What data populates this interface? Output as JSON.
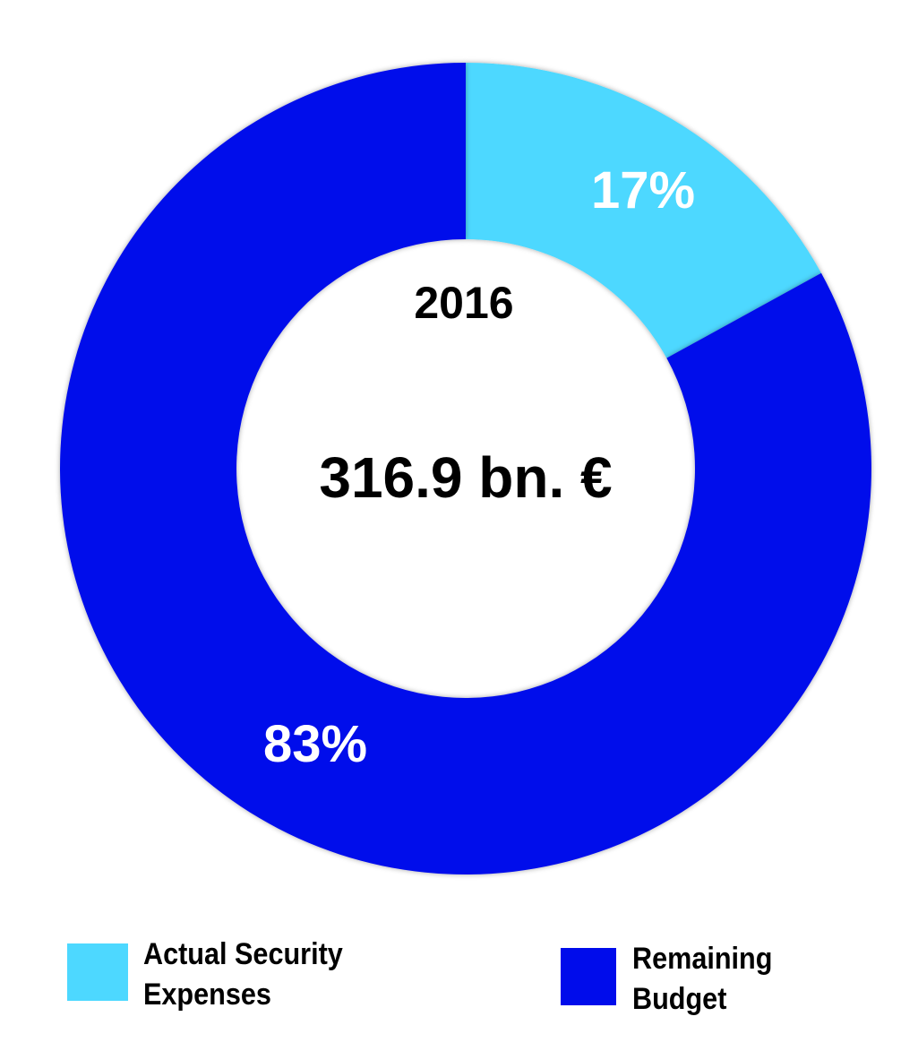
{
  "chart_data": {
    "type": "pie",
    "donut": true,
    "title": "2016",
    "center_label": "316.9 bn. €",
    "slices": [
      {
        "name": "Actual Security Expenses",
        "value": 17,
        "label": "17%",
        "color": "#4DD8FF"
      },
      {
        "name": "Remaining Budget",
        "value": 83,
        "label": "83%",
        "color": "#000CEB"
      }
    ],
    "legend": {
      "placement": "bottom",
      "entries": [
        {
          "line1": "Actual Security",
          "line2": "Expenses",
          "color": "#4DD8FF"
        },
        {
          "line1": "Remaining",
          "line2": "Budget",
          "color": "#000CEB"
        }
      ]
    }
  }
}
